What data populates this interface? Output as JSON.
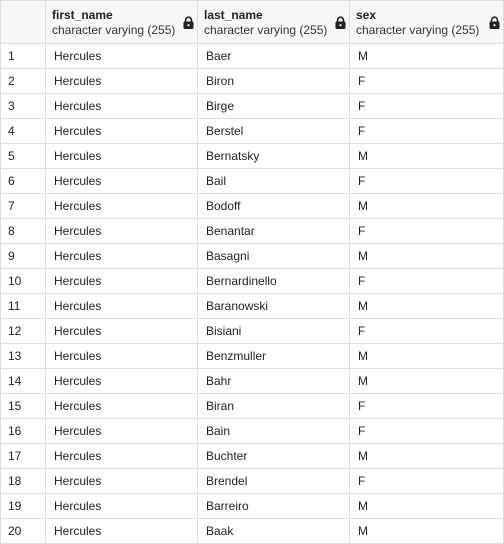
{
  "columns": [
    {
      "name": "first_name",
      "type": "character varying (255)",
      "icon": "lock-icon"
    },
    {
      "name": "last_name",
      "type": "character varying (255)",
      "icon": "lock-icon"
    },
    {
      "name": "sex",
      "type": "character varying (255)",
      "icon": "lock-icon"
    }
  ],
  "rows": [
    {
      "num": "1",
      "first_name": "Hercules",
      "last_name": "Baer",
      "sex": "M"
    },
    {
      "num": "2",
      "first_name": "Hercules",
      "last_name": "Biron",
      "sex": "F"
    },
    {
      "num": "3",
      "first_name": "Hercules",
      "last_name": "Birge",
      "sex": "F"
    },
    {
      "num": "4",
      "first_name": "Hercules",
      "last_name": "Berstel",
      "sex": "F"
    },
    {
      "num": "5",
      "first_name": "Hercules",
      "last_name": "Bernatsky",
      "sex": "M"
    },
    {
      "num": "6",
      "first_name": "Hercules",
      "last_name": "Bail",
      "sex": "F"
    },
    {
      "num": "7",
      "first_name": "Hercules",
      "last_name": "Bodoff",
      "sex": "M"
    },
    {
      "num": "8",
      "first_name": "Hercules",
      "last_name": "Benantar",
      "sex": "F"
    },
    {
      "num": "9",
      "first_name": "Hercules",
      "last_name": "Basagni",
      "sex": "M"
    },
    {
      "num": "10",
      "first_name": "Hercules",
      "last_name": "Bernardinello",
      "sex": "F"
    },
    {
      "num": "11",
      "first_name": "Hercules",
      "last_name": "Baranowski",
      "sex": "M"
    },
    {
      "num": "12",
      "first_name": "Hercules",
      "last_name": "Bisiani",
      "sex": "F"
    },
    {
      "num": "13",
      "first_name": "Hercules",
      "last_name": "Benzmuller",
      "sex": "M"
    },
    {
      "num": "14",
      "first_name": "Hercules",
      "last_name": "Bahr",
      "sex": "M"
    },
    {
      "num": "15",
      "first_name": "Hercules",
      "last_name": "Biran",
      "sex": "F"
    },
    {
      "num": "16",
      "first_name": "Hercules",
      "last_name": "Bain",
      "sex": "F"
    },
    {
      "num": "17",
      "first_name": "Hercules",
      "last_name": "Buchter",
      "sex": "M"
    },
    {
      "num": "18",
      "first_name": "Hercules",
      "last_name": "Brendel",
      "sex": "F"
    },
    {
      "num": "19",
      "first_name": "Hercules",
      "last_name": "Barreiro",
      "sex": "M"
    },
    {
      "num": "20",
      "first_name": "Hercules",
      "last_name": "Baak",
      "sex": "M"
    }
  ]
}
